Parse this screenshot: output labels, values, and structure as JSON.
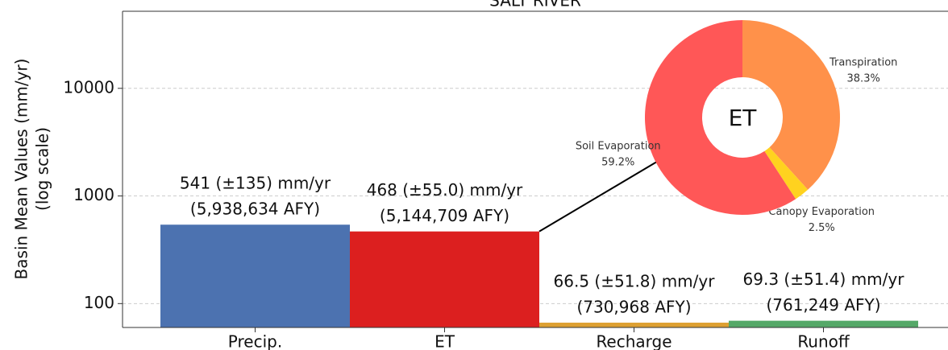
{
  "chart_data": [
    {
      "type": "bar",
      "title": "SALT RIVER",
      "ylabel": [
        "Basin Mean Values (mm/yr)",
        "(log scale)"
      ],
      "categories": [
        "Precip.",
        "ET",
        "Recharge",
        "Runoff"
      ],
      "values": [
        541,
        468,
        66.5,
        69.3
      ],
      "value_labels": [
        "541 (±135) mm/yr",
        "468 (±55.0) mm/yr",
        "66.5 (±51.8) mm/yr",
        "69.3 (±51.4) mm/yr"
      ],
      "secondary_labels": [
        "(5,938,634 AFY)",
        "(5,144,709 AFY)",
        "(730,968 AFY)",
        "(761,249 AFY)"
      ],
      "colors": [
        "#4c72b0",
        "#dc1f1f",
        "#dda032",
        "#55a868"
      ],
      "log_scale": true,
      "ylim": [
        60,
        52000
      ],
      "yticks": [
        100,
        1000,
        10000
      ],
      "grid": true
    },
    {
      "type": "pie",
      "title": "ET",
      "categories": [
        "Transpiration",
        "Canopy Evaporation",
        "Soil Evaporation"
      ],
      "values": [
        38.3,
        2.5,
        59.2
      ],
      "value_labels": [
        "38.3%",
        "2.5%",
        "59.2%"
      ],
      "colors": [
        "#ff914a",
        "#ffd21f",
        "#ff5757"
      ]
    }
  ]
}
